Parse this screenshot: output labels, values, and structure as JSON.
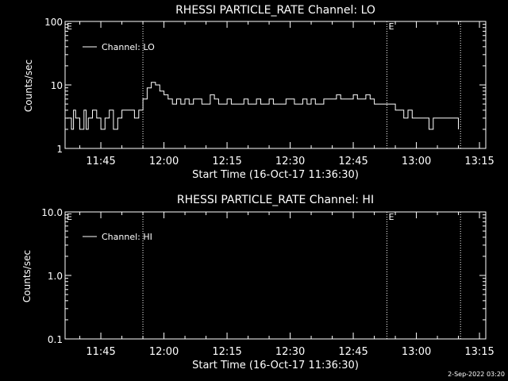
{
  "footer": {
    "timestamp": "2-Sep-2022 03:20"
  },
  "chart_data": [
    {
      "type": "line",
      "title": "RHESSI PARTICLE_RATE Channel: LO",
      "xlabel": "Start Time (16-Oct-17 11:36:30)",
      "ylabel": "Counts/sec",
      "yscale": "log",
      "ylim": [
        1,
        100
      ],
      "yticks": [
        1,
        10,
        100
      ],
      "ytick_labels": [
        "1",
        "10",
        "100"
      ],
      "xlim": [
        "11:36:30",
        "13:16:30"
      ],
      "xtick_labels": [
        "11:45",
        "12:00",
        "12:15",
        "12:30",
        "12:45",
        "13:00",
        "13:15"
      ],
      "xticks": [
        "11:45",
        "12:00",
        "12:15",
        "12:30",
        "12:45",
        "13:00",
        "13:15"
      ],
      "event_lines": [
        "11:55:00",
        "12:53:00",
        "13:10:30"
      ],
      "event_marks": [
        {
          "time": "11:36:30",
          "label": "E"
        },
        {
          "time": "12:53:00",
          "label": "E"
        }
      ],
      "legend": {
        "position": "top-left",
        "label": "Channel: LO"
      },
      "series": [
        {
          "name": "Channel: LO",
          "x": [
            "11:37",
            "11:38",
            "11:38:30",
            "11:39",
            "11:40",
            "11:41",
            "11:41:30",
            "11:42",
            "11:43",
            "11:44",
            "11:45",
            "11:46",
            "11:47",
            "11:48",
            "11:49",
            "11:50",
            "11:51",
            "11:52",
            "11:53",
            "11:54",
            "11:55",
            "11:56",
            "11:57",
            "11:58",
            "11:59",
            "12:00",
            "12:01",
            "12:02",
            "12:03",
            "12:04",
            "12:05",
            "12:06",
            "12:07",
            "12:08",
            "12:09",
            "12:10",
            "12:11",
            "12:12",
            "12:13",
            "12:14",
            "12:15",
            "12:16",
            "12:17",
            "12:18",
            "12:19",
            "12:20",
            "12:21",
            "12:22",
            "12:23",
            "12:24",
            "12:25",
            "12:26",
            "12:27",
            "12:28",
            "12:29",
            "12:30",
            "12:31",
            "12:32",
            "12:33",
            "12:34",
            "12:35",
            "12:36",
            "12:37",
            "12:38",
            "12:39",
            "12:40",
            "12:41",
            "12:42",
            "12:43",
            "12:44",
            "12:45",
            "12:46",
            "12:47",
            "12:48",
            "12:49",
            "12:50",
            "12:51",
            "12:52",
            "12:53",
            "12:54",
            "12:55",
            "12:56",
            "12:57",
            "12:58",
            "12:59",
            "13:00",
            "13:01",
            "13:02",
            "13:03",
            "13:04",
            "13:05",
            "13:06",
            "13:07",
            "13:08",
            "13:09",
            "13:10"
          ],
          "y": [
            3,
            2,
            4,
            3,
            2,
            4,
            2,
            3,
            4,
            3,
            2,
            3,
            4,
            2,
            3,
            4,
            4,
            4,
            3,
            4,
            6,
            9,
            11,
            10,
            8,
            7,
            6,
            5,
            6,
            5,
            6,
            5,
            6,
            6,
            5,
            5,
            7,
            6,
            5,
            5,
            6,
            5,
            5,
            5,
            6,
            5,
            5,
            6,
            5,
            5,
            6,
            5,
            5,
            5,
            6,
            6,
            5,
            5,
            6,
            5,
            6,
            5,
            5,
            6,
            6,
            6,
            7,
            6,
            6,
            6,
            7,
            6,
            6,
            7,
            6,
            5,
            5,
            5,
            5,
            5,
            4,
            4,
            3,
            4,
            3,
            3,
            3,
            3,
            2,
            3,
            3,
            3,
            3,
            3,
            3,
            2
          ]
        }
      ]
    },
    {
      "type": "line",
      "title": "RHESSI PARTICLE_RATE Channel: HI",
      "xlabel": "Start Time (16-Oct-17 11:36:30)",
      "ylabel": "Counts/sec",
      "yscale": "log",
      "ylim": [
        0.1,
        10
      ],
      "yticks": [
        0.1,
        1,
        10
      ],
      "ytick_labels": [
        "0.1",
        "1.0",
        "10.0"
      ],
      "xlim": [
        "11:36:30",
        "13:16:30"
      ],
      "xtick_labels": [
        "11:45",
        "12:00",
        "12:15",
        "12:30",
        "12:45",
        "13:00",
        "13:15"
      ],
      "xticks": [
        "11:45",
        "12:00",
        "12:15",
        "12:30",
        "12:45",
        "13:00",
        "13:15"
      ],
      "event_lines": [
        "11:55:00",
        "12:53:00",
        "13:10:30"
      ],
      "event_marks": [
        {
          "time": "11:36:30",
          "label": "E"
        },
        {
          "time": "12:53:00",
          "label": "E"
        }
      ],
      "legend": {
        "position": "top-left",
        "label": "Channel: HI"
      },
      "series": [
        {
          "name": "Channel: HI",
          "x": [],
          "y": []
        }
      ]
    }
  ]
}
